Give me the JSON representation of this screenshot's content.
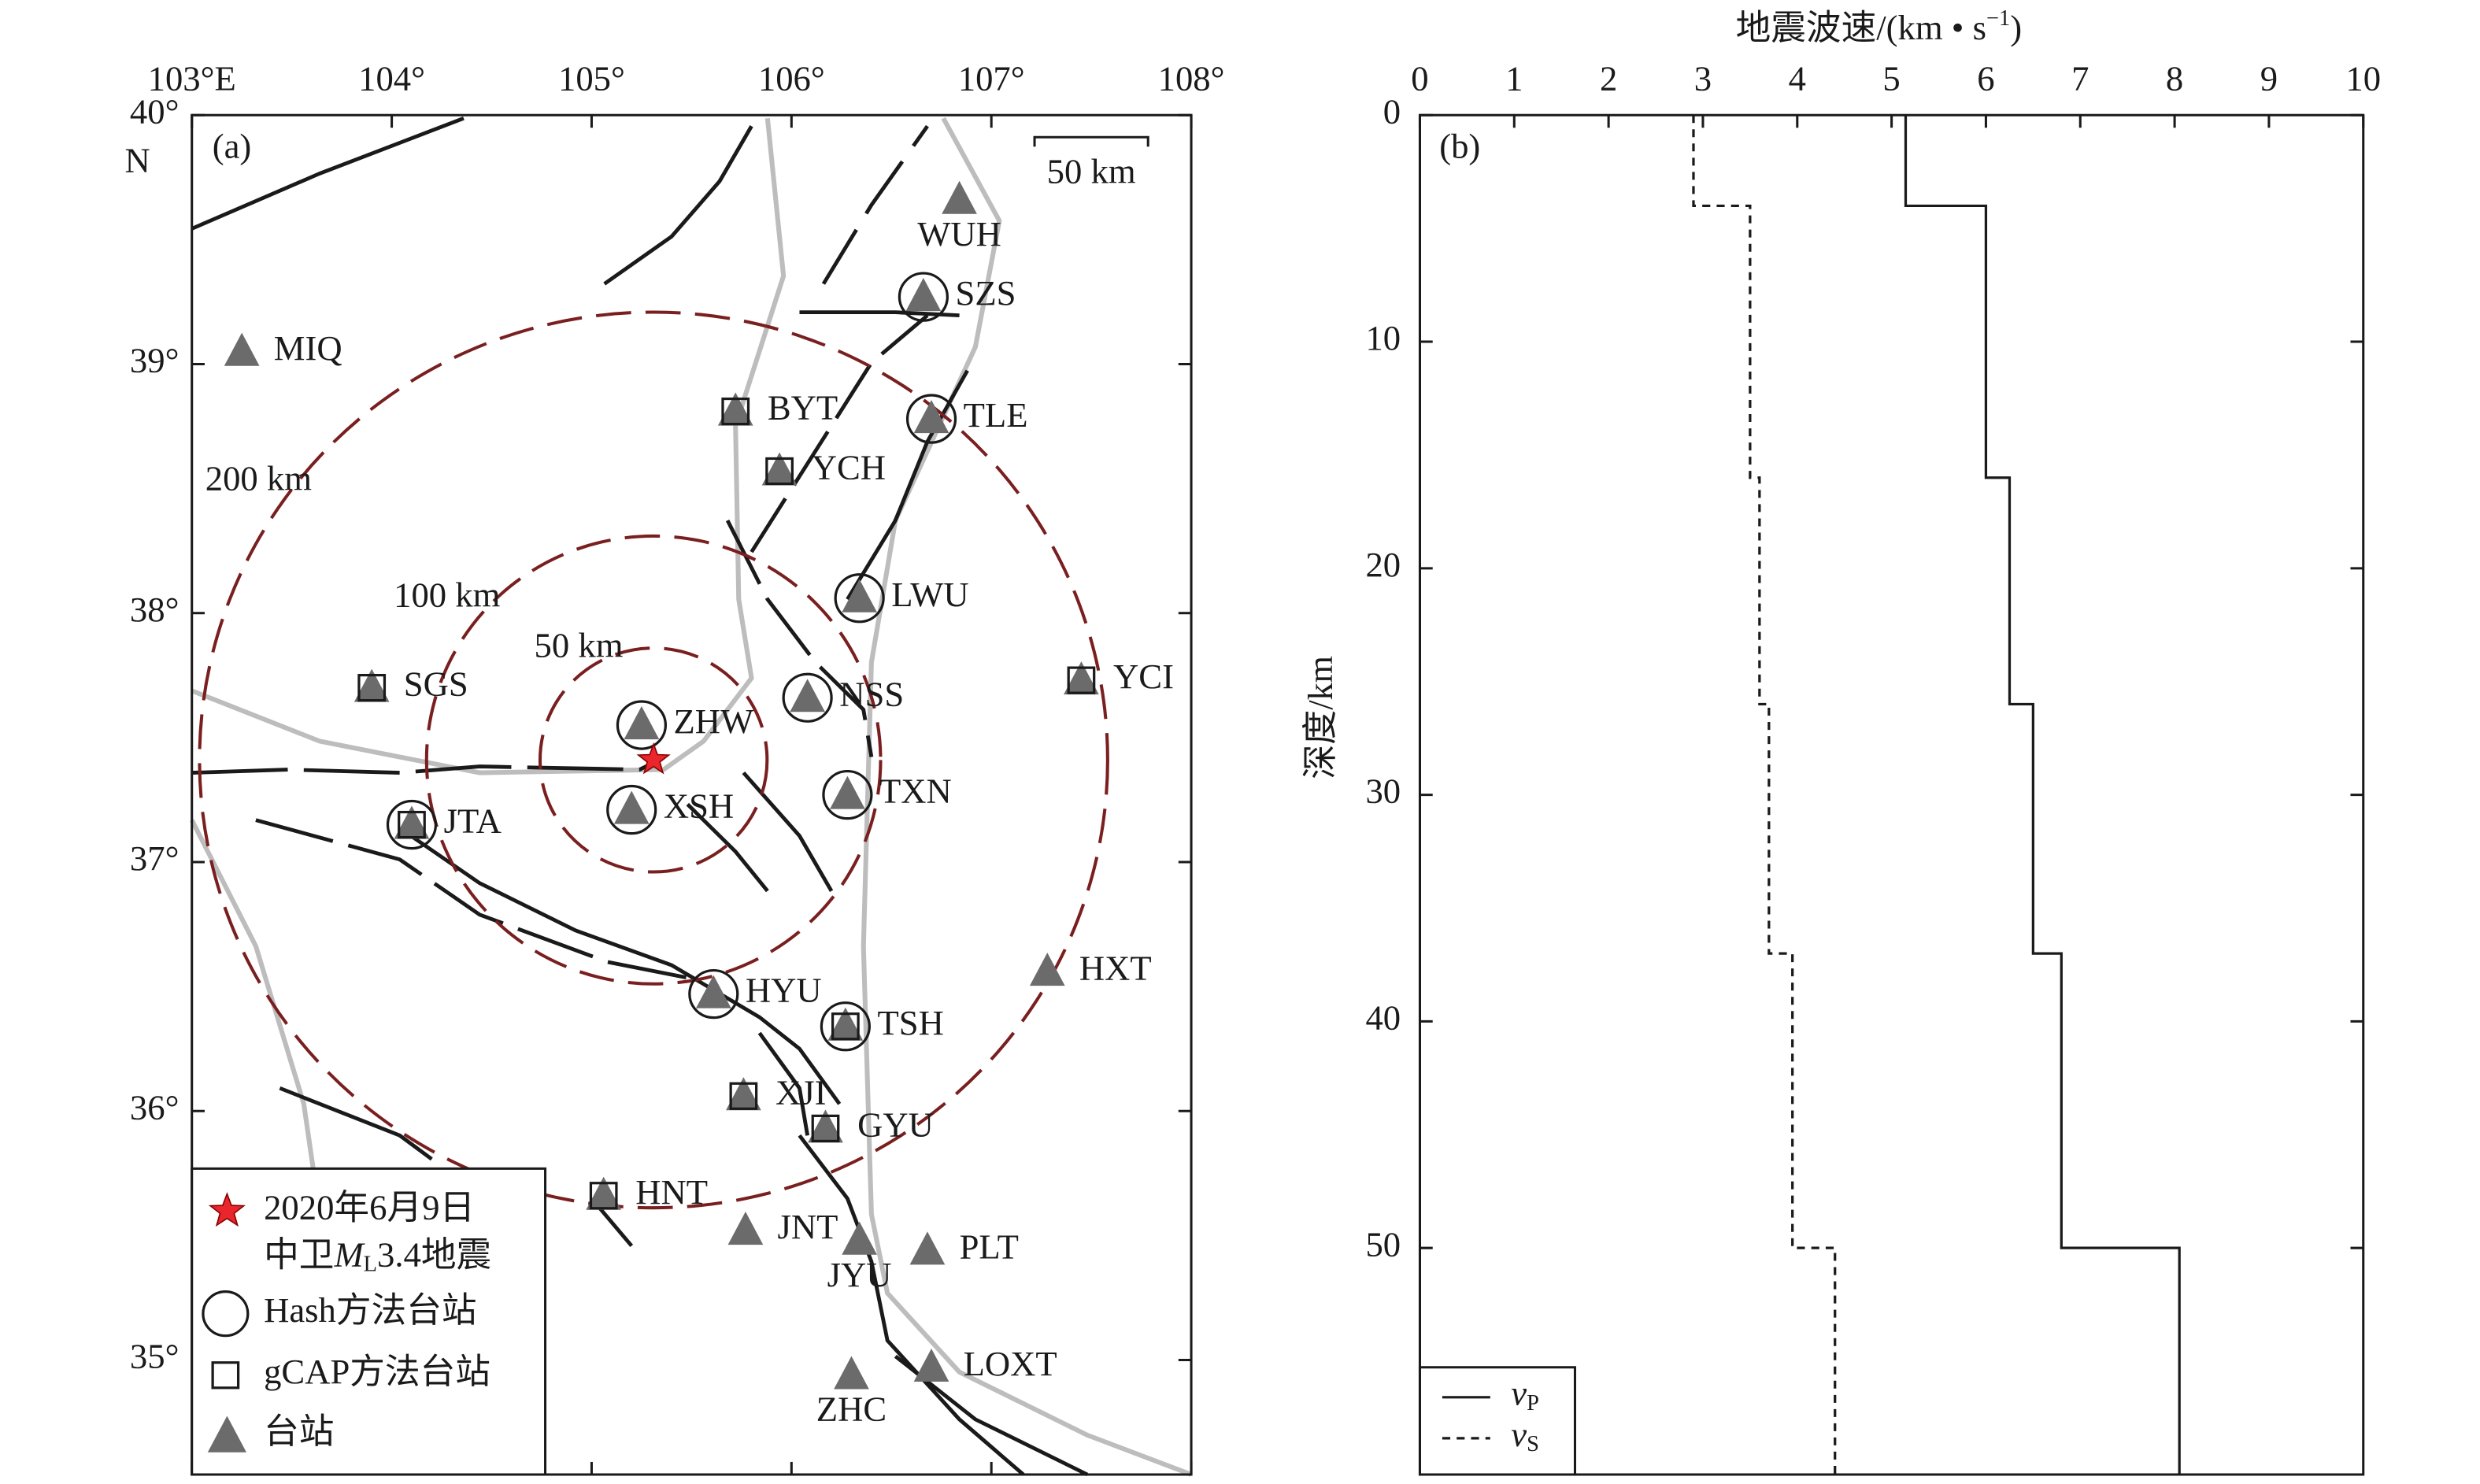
{
  "chart_data": [
    {
      "type": "map",
      "panel_label": "(a)",
      "xlim": [
        103,
        108
      ],
      "ylim": [
        34.54,
        40
      ],
      "xticks": [
        {
          "value": 103,
          "label": "103°E"
        },
        {
          "value": 104,
          "label": "104°"
        },
        {
          "value": 105,
          "label": "105°"
        },
        {
          "value": 106,
          "label": "106°"
        },
        {
          "value": 107,
          "label": "107°"
        },
        {
          "value": 108,
          "label": "108°"
        }
      ],
      "yticks": [
        {
          "value": 35,
          "label": "35°"
        },
        {
          "value": 36,
          "label": "36°"
        },
        {
          "value": 37,
          "label": "37°"
        },
        {
          "value": 38,
          "label": "38°"
        },
        {
          "value": 39,
          "label": "39°"
        },
        {
          "value": 40,
          "label": "40°"
        }
      ],
      "y_hemisphere": "N",
      "event": {
        "lon": 105.31,
        "lat": 37.41,
        "color": "#e8262b",
        "label": [
          "2020年6月9日",
          "中卫",
          "M",
          "L",
          "3.4地震"
        ]
      },
      "ring_color": "#7a1f1f",
      "rings": [
        {
          "radius_km": 50,
          "label": "50 km"
        },
        {
          "radius_km": 100,
          "label": "100 km"
        },
        {
          "radius_km": 200,
          "label": "200 km"
        }
      ],
      "scale_bar": {
        "km": 50,
        "label": "50 km"
      },
      "station_color": "#6b6b6b",
      "stations": [
        {
          "name": "WUH",
          "lon": 106.84,
          "lat": 39.66,
          "hash": false,
          "gcap": false
        },
        {
          "name": "SZS",
          "lon": 106.66,
          "lat": 39.27,
          "hash": true,
          "gcap": false
        },
        {
          "name": "MIQ",
          "lon": 103.25,
          "lat": 39.05,
          "hash": false,
          "gcap": false
        },
        {
          "name": "BYT",
          "lon": 105.72,
          "lat": 38.81,
          "hash": false,
          "gcap": true
        },
        {
          "name": "TLE",
          "lon": 106.7,
          "lat": 38.78,
          "hash": true,
          "gcap": false
        },
        {
          "name": "YCH",
          "lon": 105.94,
          "lat": 38.57,
          "hash": false,
          "gcap": true
        },
        {
          "name": "LWU",
          "lon": 106.34,
          "lat": 38.06,
          "hash": true,
          "gcap": false
        },
        {
          "name": "SGS",
          "lon": 103.9,
          "lat": 37.7,
          "hash": false,
          "gcap": true
        },
        {
          "name": "YCI",
          "lon": 107.45,
          "lat": 37.73,
          "hash": false,
          "gcap": true
        },
        {
          "name": "NSS",
          "lon": 106.08,
          "lat": 37.66,
          "hash": true,
          "gcap": false
        },
        {
          "name": "ZHW",
          "lon": 105.25,
          "lat": 37.55,
          "hash": true,
          "gcap": false
        },
        {
          "name": "TXN",
          "lon": 106.28,
          "lat": 37.27,
          "hash": true,
          "gcap": false
        },
        {
          "name": "XSH",
          "lon": 105.2,
          "lat": 37.21,
          "hash": true,
          "gcap": false
        },
        {
          "name": "JTA",
          "lon": 104.1,
          "lat": 37.15,
          "hash": true,
          "gcap": true
        },
        {
          "name": "HXT",
          "lon": 107.28,
          "lat": 36.56,
          "hash": false,
          "gcap": false
        },
        {
          "name": "HYU",
          "lon": 105.61,
          "lat": 36.47,
          "hash": true,
          "gcap": false
        },
        {
          "name": "TSH",
          "lon": 106.27,
          "lat": 36.34,
          "hash": true,
          "gcap": true
        },
        {
          "name": "XJI",
          "lon": 105.76,
          "lat": 36.06,
          "hash": false,
          "gcap": true
        },
        {
          "name": "GYU",
          "lon": 106.17,
          "lat": 35.93,
          "hash": false,
          "gcap": true
        },
        {
          "name": "HNT",
          "lon": 105.06,
          "lat": 35.66,
          "hash": false,
          "gcap": true
        },
        {
          "name": "JNT",
          "lon": 105.77,
          "lat": 35.52,
          "hash": false,
          "gcap": false
        },
        {
          "name": "JYU",
          "lon": 106.34,
          "lat": 35.48,
          "hash": false,
          "gcap": false
        },
        {
          "name": "PLT",
          "lon": 106.68,
          "lat": 35.44,
          "hash": false,
          "gcap": false
        },
        {
          "name": "LOXT",
          "lon": 106.7,
          "lat": 34.97,
          "hash": false,
          "gcap": false
        },
        {
          "name": "ZHC",
          "lon": 106.3,
          "lat": 34.94,
          "hash": false,
          "gcap": false
        }
      ],
      "legend": {
        "hash": "Hash方法台站",
        "gcap": "gCAP方法台站",
        "station": "台站"
      }
    },
    {
      "type": "line",
      "panel_label": "(b)",
      "x_label": [
        "地震波速/(km • s",
        "−1",
        ")"
      ],
      "y_label": "深度/km",
      "xlim": [
        0,
        10
      ],
      "xticks": [
        0,
        1,
        2,
        3,
        4,
        5,
        6,
        7,
        8,
        9,
        10
      ],
      "ylim": [
        0,
        60
      ],
      "yticks": [
        0,
        10,
        20,
        30,
        40,
        50
      ],
      "y_inverted": true,
      "series": [
        {
          "name": "v",
          "subscript": "P",
          "dash": "solid",
          "color": "#1a1a1a",
          "values": [
            5.15,
            5.15,
            6.0,
            6.0,
            6.25,
            6.25,
            6.5,
            6.5,
            6.8,
            6.8,
            8.05,
            8.05
          ],
          "depth": [
            0,
            4,
            4,
            16,
            16,
            26,
            26,
            37,
            37,
            50,
            50,
            60
          ]
        },
        {
          "name": "v",
          "subscript": "S",
          "dash": "dashed",
          "color": "#1a1a1a",
          "values": [
            2.9,
            2.9,
            3.5,
            3.5,
            3.6,
            3.6,
            3.7,
            3.7,
            3.95,
            3.95,
            4.4,
            4.4
          ],
          "depth": [
            0,
            4,
            4,
            16,
            16,
            26,
            26,
            37,
            37,
            50,
            50,
            60
          ]
        }
      ]
    }
  ]
}
